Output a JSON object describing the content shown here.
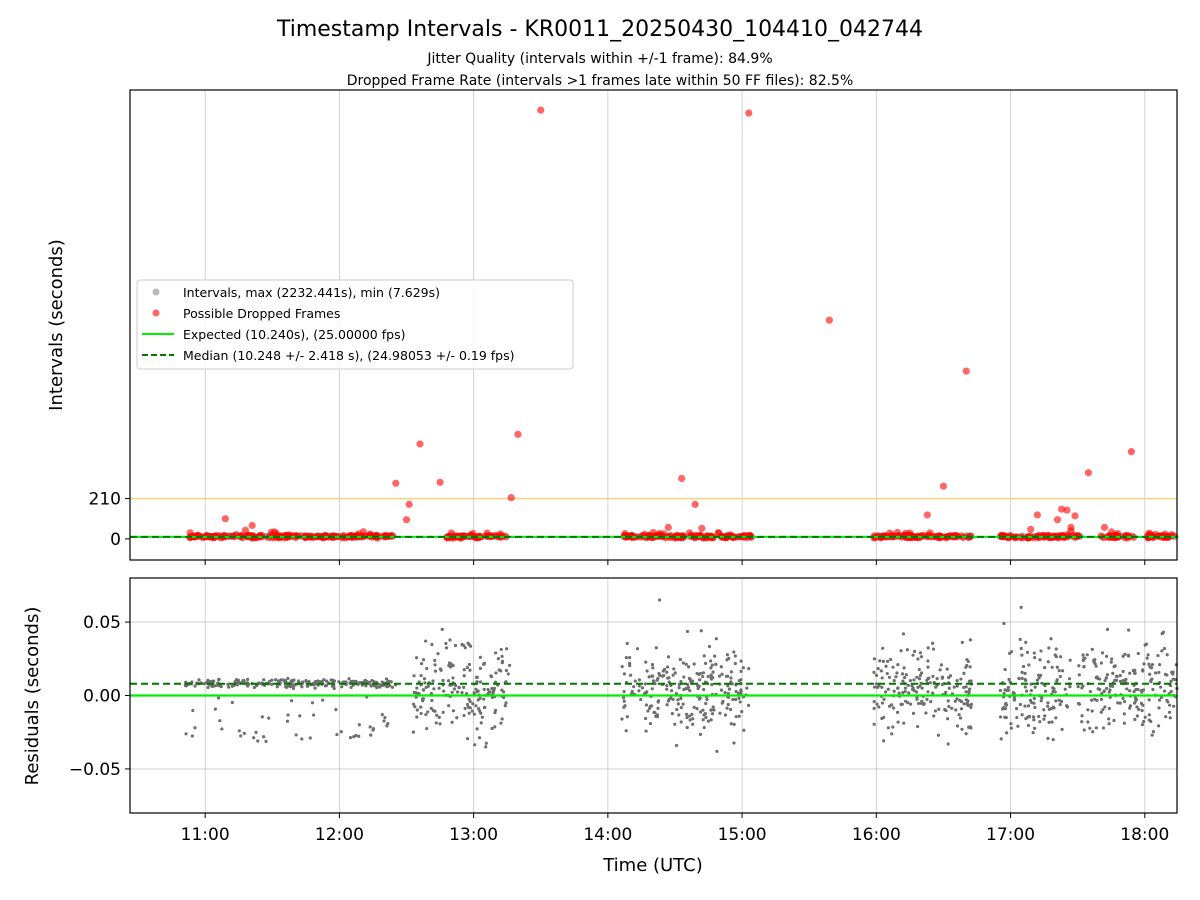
{
  "chart_data": {
    "type": "scatter",
    "title": "Timestamp Intervals - KR0011_20250430_104410_042744",
    "subtitle_lines": [
      "Jitter Quality (intervals within +/-1 frame): 84.9%",
      "Dropped Frame Rate (intervals >1 frames late within 50 FF files): 82.5%"
    ],
    "x_axis": {
      "label": "Time (UTC)",
      "range_hours": [
        10.44,
        18.24
      ],
      "ticks": [
        {
          "value": 11,
          "label": "11:00"
        },
        {
          "value": 12,
          "label": "12:00"
        },
        {
          "value": 13,
          "label": "13:00"
        },
        {
          "value": 14,
          "label": "14:00"
        },
        {
          "value": 15,
          "label": "15:00"
        },
        {
          "value": 16,
          "label": "16:00"
        },
        {
          "value": 17,
          "label": "17:00"
        },
        {
          "value": 18,
          "label": "18:00"
        }
      ]
    },
    "top_panel": {
      "ylabel": "Intervals (seconds)",
      "ylim": [
        -110,
        2340
      ],
      "yticks": [
        {
          "value": 0,
          "label": "0"
        },
        {
          "value": 210,
          "label": "210"
        }
      ],
      "grid": "vertical",
      "threshold_line": 210,
      "threshold_color": "#f6d37e",
      "expected_value": 10.24,
      "median_value": 10.248,
      "normal_color": "#8c8c8c",
      "dropped_color": "#ff0000",
      "expected_color": "#00ee00",
      "median_color": "#007700",
      "dropped_frames_outliers": [
        [
          11.15,
          105
        ],
        [
          11.3,
          45
        ],
        [
          11.35,
          70
        ],
        [
          12.42,
          290
        ],
        [
          12.5,
          100
        ],
        [
          12.52,
          180
        ],
        [
          12.6,
          495
        ],
        [
          12.75,
          295
        ],
        [
          13.1,
          30
        ],
        [
          13.28,
          215
        ],
        [
          13.33,
          545
        ],
        [
          13.5,
          2235
        ],
        [
          14.45,
          60
        ],
        [
          14.55,
          315
        ],
        [
          14.65,
          180
        ],
        [
          14.7,
          55
        ],
        [
          15.05,
          2220
        ],
        [
          15.65,
          1140
        ],
        [
          16.1,
          30
        ],
        [
          16.38,
          125
        ],
        [
          16.5,
          275
        ],
        [
          16.67,
          875
        ],
        [
          17.15,
          50
        ],
        [
          17.2,
          125
        ],
        [
          17.35,
          100
        ],
        [
          17.38,
          155
        ],
        [
          17.42,
          150
        ],
        [
          17.45,
          60
        ],
        [
          17.48,
          120
        ],
        [
          17.58,
          345
        ],
        [
          17.7,
          60
        ],
        [
          17.9,
          455
        ],
        [
          18.15,
          25
        ]
      ],
      "dropped_frames_clusters": [
        [
          10.88,
          12.4
        ],
        [
          12.8,
          13.25
        ],
        [
          14.1,
          15.1
        ],
        [
          15.98,
          16.72
        ],
        [
          16.92,
          17.52
        ],
        [
          17.67,
          17.92
        ],
        [
          18.0,
          18.24
        ]
      ],
      "legend": {
        "placement": "center-left",
        "entries": [
          {
            "label": "Intervals, max (2232.441s), min (7.629s)",
            "marker": "circle",
            "color": "#8c8c8c"
          },
          {
            "label": "Possible Dropped Frames",
            "marker": "circle",
            "color": "#ff0000"
          },
          {
            "label": "Expected (10.240s), (25.00000 fps)",
            "marker": "line",
            "color": "#00ee00"
          },
          {
            "label": "Median (10.248 +/- 2.418 s), (24.98053 +/- 0.19 fps)",
            "marker": "dashed-line",
            "color": "#007700"
          }
        ]
      }
    },
    "bottom_panel": {
      "ylabel": "Residuals (seconds)",
      "ylim": [
        -0.08,
        0.08
      ],
      "yticks": [
        {
          "value": 0.05,
          "label": "0.05"
        },
        {
          "value": 0.0,
          "label": "0.00"
        },
        {
          "value": -0.05,
          "label": "−0.05"
        }
      ],
      "grid": "both",
      "expected_residual": 0.0,
      "median_residual": 0.008,
      "point_color": "#6e6e6e",
      "residual_clusters": [
        {
          "x_range": [
            10.85,
            12.42
          ],
          "band": 0.008,
          "spread": 0.0015,
          "scatter_min": -0.033,
          "scatter_max": 0.0
        },
        {
          "x_range": [
            12.55,
            13.27
          ],
          "band": 0.005,
          "spread": 0.02,
          "scatter_min": -0.035,
          "scatter_max": 0.045
        },
        {
          "x_range": [
            14.1,
            15.05
          ],
          "band": 0.005,
          "spread": 0.02,
          "scatter_min": -0.038,
          "scatter_max": 0.065
        },
        {
          "x_range": [
            15.98,
            16.72
          ],
          "band": 0.005,
          "spread": 0.02,
          "scatter_min": -0.033,
          "scatter_max": 0.042
        },
        {
          "x_range": [
            16.92,
            17.45
          ],
          "band": 0.005,
          "spread": 0.02,
          "scatter_min": -0.03,
          "scatter_max": 0.06
        },
        {
          "x_range": [
            17.5,
            18.24
          ],
          "band": 0.005,
          "spread": 0.02,
          "scatter_min": -0.027,
          "scatter_max": 0.045
        }
      ]
    }
  }
}
